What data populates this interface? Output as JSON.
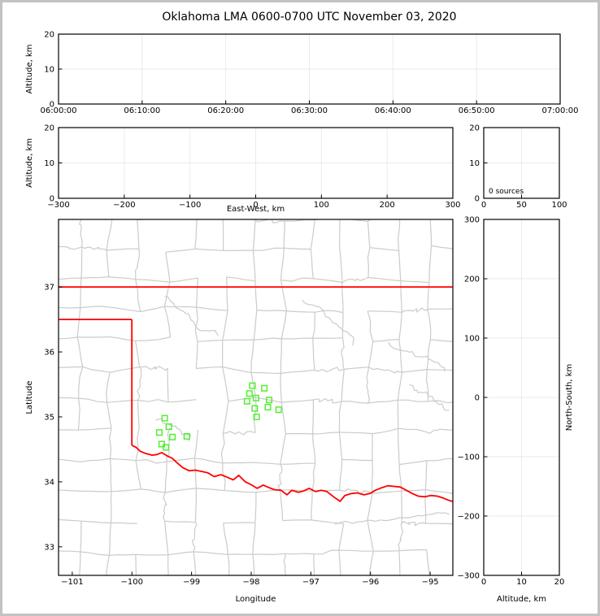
{
  "title": "Oklahoma LMA 0600-0700 UTC November 03, 2020",
  "colors": {
    "state_boundary": "#ff0000",
    "county_lines": "#cbcbcb",
    "station_marker": "#54ef32",
    "gridline": "#eaeaea",
    "frame": "#000000",
    "text": "#000000",
    "figure_border": "#c3c3c3",
    "background": "#ffffff"
  },
  "panels": {
    "time_height": {
      "ylabel": "Altitude, km",
      "ytick_labels": [
        "0",
        "10",
        "20"
      ],
      "xtick_labels": [
        "06:00:00",
        "06:10:00",
        "06:20:00",
        "06:30:00",
        "06:40:00",
        "06:50:00",
        "07:00:00"
      ]
    },
    "ew_height": {
      "ylabel": "Altitude, km",
      "xlabel": "East-West, km",
      "ytick_labels": [
        "0",
        "10",
        "20"
      ],
      "xtick_labels": [
        "−300",
        "−200",
        "−100",
        "0",
        "100",
        "200",
        "300"
      ]
    },
    "alt_histogram": {
      "annotation": "0 sources",
      "ytick_labels": [
        "0",
        "10",
        "20"
      ],
      "xtick_labels": [
        "0",
        "50",
        "100"
      ]
    },
    "map": {
      "xlabel": "Longitude",
      "ylabel": "Latitude",
      "xtick_labels": [
        "−101",
        "−100",
        "−99",
        "−98",
        "−97",
        "−96",
        "−95"
      ],
      "ytick_labels": [
        "33",
        "34",
        "35",
        "36",
        "37"
      ]
    },
    "ns_height": {
      "xlabel": "Altitude, km",
      "ylabel": "North-South, km",
      "xtick_labels": [
        "0",
        "10",
        "20"
      ],
      "ytick_labels": [
        "−300",
        "−200",
        "−100",
        "0",
        "100",
        "200",
        "300"
      ]
    }
  },
  "chart_data": [
    {
      "type": "scatter",
      "panel": "time_height",
      "xlabel": "",
      "ylabel": "Altitude, km",
      "x_tick_labels": [
        "06:00:00",
        "06:10:00",
        "06:20:00",
        "06:30:00",
        "06:40:00",
        "06:50:00",
        "07:00:00"
      ],
      "xlim_seconds": [
        0,
        3600
      ],
      "xticks_seconds": [
        0,
        600,
        1200,
        1800,
        2400,
        3000,
        3600
      ],
      "yticks": [
        0,
        10,
        20
      ],
      "ylim": [
        0,
        20
      ],
      "grid": true,
      "points": []
    },
    {
      "type": "scatter",
      "panel": "ew_height",
      "xlabel": "East-West, km",
      "ylabel": "Altitude, km",
      "xticks": [
        -300,
        -200,
        -100,
        0,
        100,
        200,
        300
      ],
      "xlim": [
        -300,
        300
      ],
      "yticks": [
        0,
        10,
        20
      ],
      "ylim": [
        0,
        20
      ],
      "grid": true,
      "points": []
    },
    {
      "type": "histogram",
      "panel": "alt_histogram",
      "annotation": "0 sources",
      "sources_count": 0,
      "xticks": [
        0,
        50,
        100
      ],
      "xlim": [
        0,
        100
      ],
      "yticks": [
        0,
        10,
        20
      ],
      "ylim": [
        0,
        20
      ],
      "grid": true,
      "values": []
    },
    {
      "type": "map_scatter",
      "panel": "map",
      "xlabel": "Longitude",
      "ylabel": "Latitude",
      "xticks": [
        -101,
        -100,
        -99,
        -98,
        -97,
        -96,
        -95
      ],
      "yticks": [
        33,
        34,
        35,
        36,
        37
      ],
      "xlim": [
        -101.23,
        -94.62
      ],
      "ylim": [
        32.56,
        38.04
      ],
      "points": [],
      "stations_lon_lat": [
        [
          -99.45,
          34.98
        ],
        [
          -99.38,
          34.85
        ],
        [
          -99.54,
          34.76
        ],
        [
          -99.32,
          34.69
        ],
        [
          -99.08,
          34.7
        ],
        [
          -99.5,
          34.58
        ],
        [
          -99.43,
          34.53
        ],
        [
          -97.98,
          35.48
        ],
        [
          -97.78,
          35.44
        ],
        [
          -98.03,
          35.36
        ],
        [
          -97.92,
          35.29
        ],
        [
          -98.07,
          35.24
        ],
        [
          -97.7,
          35.26
        ],
        [
          -97.94,
          35.13
        ],
        [
          -97.72,
          35.15
        ],
        [
          -97.54,
          35.11
        ],
        [
          -97.91,
          35.0
        ]
      ],
      "state_boundary_segments": [
        {
          "name": "oklahoma-kansas-border-37N",
          "points": [
            [
              -101.24,
              37.0
            ],
            [
              -94.61,
              37.0
            ]
          ]
        },
        {
          "name": "panhandle-north-36p5N",
          "points": [
            [
              -101.24,
              36.5
            ],
            [
              -100.0,
              36.5
            ]
          ]
        },
        {
          "name": "texas-border-100W",
          "points": [
            [
              -100.0,
              36.5
            ],
            [
              -100.0,
              34.56
            ]
          ]
        },
        {
          "name": "red-river-south-border",
          "points": [
            [
              -100.0,
              34.56
            ],
            [
              -99.93,
              34.53
            ],
            [
              -99.86,
              34.47
            ],
            [
              -99.78,
              34.44
            ],
            [
              -99.66,
              34.41
            ],
            [
              -99.58,
              34.42
            ],
            [
              -99.5,
              34.45
            ],
            [
              -99.41,
              34.4
            ],
            [
              -99.32,
              34.36
            ],
            [
              -99.24,
              34.29
            ],
            [
              -99.15,
              34.22
            ],
            [
              -99.04,
              34.17
            ],
            [
              -98.94,
              34.18
            ],
            [
              -98.83,
              34.16
            ],
            [
              -98.73,
              34.14
            ],
            [
              -98.62,
              34.08
            ],
            [
              -98.51,
              34.11
            ],
            [
              -98.4,
              34.07
            ],
            [
              -98.3,
              34.03
            ],
            [
              -98.21,
              34.1
            ],
            [
              -98.1,
              34.0
            ],
            [
              -98.01,
              33.96
            ],
            [
              -97.9,
              33.9
            ],
            [
              -97.8,
              33.95
            ],
            [
              -97.7,
              33.91
            ],
            [
              -97.61,
              33.88
            ],
            [
              -97.5,
              33.87
            ],
            [
              -97.4,
              33.8
            ],
            [
              -97.32,
              33.87
            ],
            [
              -97.21,
              33.84
            ],
            [
              -97.12,
              33.86
            ],
            [
              -97.03,
              33.9
            ],
            [
              -96.92,
              33.85
            ],
            [
              -96.83,
              33.87
            ],
            [
              -96.73,
              33.85
            ],
            [
              -96.62,
              33.77
            ],
            [
              -96.51,
              33.7
            ],
            [
              -96.43,
              33.79
            ],
            [
              -96.32,
              33.82
            ],
            [
              -96.22,
              33.83
            ],
            [
              -96.11,
              33.8
            ],
            [
              -96.01,
              33.82
            ],
            [
              -95.92,
              33.87
            ],
            [
              -95.81,
              33.91
            ],
            [
              -95.71,
              33.94
            ],
            [
              -95.61,
              33.93
            ],
            [
              -95.5,
              33.92
            ],
            [
              -95.4,
              33.87
            ],
            [
              -95.3,
              33.82
            ],
            [
              -95.2,
              33.78
            ],
            [
              -95.09,
              33.77
            ],
            [
              -94.99,
              33.79
            ],
            [
              -94.88,
              33.78
            ],
            [
              -94.78,
              33.75
            ],
            [
              -94.7,
              33.72
            ],
            [
              -94.6,
              33.69
            ]
          ]
        }
      ],
      "county_grid": {
        "lon_start": -101.35,
        "lon_step": 0.486,
        "cols": 14,
        "lat_start": 32.45,
        "lat_step": 0.467,
        "rows": 12,
        "seed": 20201103,
        "edge_probability": 0.82
      },
      "rivers": [
        [
          [
            -99.45,
            36.85
          ],
          [
            -98.55,
            36.25
          ]
        ],
        [
          [
            -97.15,
            36.8
          ],
          [
            -96.3,
            36.1
          ]
        ],
        [
          [
            -95.7,
            36.15
          ],
          [
            -94.75,
            35.7
          ]
        ],
        [
          [
            -99.6,
            34.95
          ],
          [
            -99.05,
            34.62
          ]
        ],
        [
          [
            -96.6,
            33.35
          ],
          [
            -94.68,
            33.5
          ]
        ],
        [
          [
            -95.35,
            35.5
          ],
          [
            -94.68,
            35.1
          ]
        ]
      ]
    },
    {
      "type": "scatter",
      "panel": "ns_height",
      "xlabel": "Altitude, km",
      "ylabel": "North-South, km",
      "xticks": [
        0,
        10,
        20
      ],
      "xlim": [
        0,
        20
      ],
      "yticks": [
        -300,
        -200,
        -100,
        0,
        100,
        200,
        300
      ],
      "ylim": [
        -300,
        300
      ],
      "grid": true,
      "points": []
    }
  ]
}
